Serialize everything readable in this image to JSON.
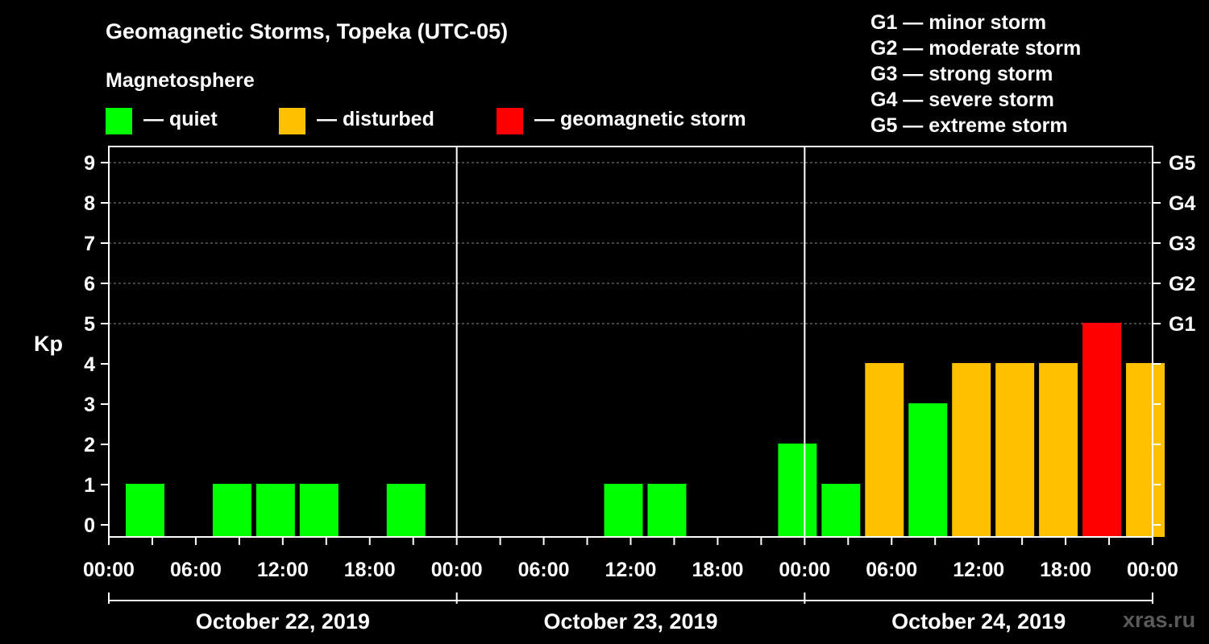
{
  "chart_data": {
    "type": "bar",
    "title": "Geomagnetic Storms, Topeka (UTC-05)",
    "subtitle": "Magnetosphere",
    "ylabel": "Kp",
    "ylim": [
      0,
      9
    ],
    "y_ticks": [
      "0",
      "1",
      "2",
      "3",
      "4",
      "5",
      "6",
      "7",
      "8",
      "9"
    ],
    "right_ticks": [
      {
        "kp": 5,
        "label": "G1"
      },
      {
        "kp": 6,
        "label": "G2"
      },
      {
        "kp": 7,
        "label": "G3"
      },
      {
        "kp": 8,
        "label": "G4"
      },
      {
        "kp": 9,
        "label": "G5"
      }
    ],
    "x_tick_labels": [
      "00:00",
      "06:00",
      "12:00",
      "18:00",
      "00:00",
      "06:00",
      "12:00",
      "18:00",
      "00:00",
      "06:00",
      "12:00",
      "18:00",
      "00:00"
    ],
    "days": [
      "October 22, 2019",
      "October 23, 2019",
      "October 24, 2019"
    ],
    "bin_hours": 3,
    "values": [
      1,
      0,
      1,
      1,
      1,
      0,
      1,
      0,
      0,
      0,
      0,
      1,
      1,
      0,
      0,
      2,
      1,
      4,
      3,
      4,
      4,
      4,
      5,
      4
    ],
    "categories": [
      "quiet",
      "quiet",
      "quiet",
      "quiet",
      "quiet",
      "quiet",
      "quiet",
      "quiet",
      "quiet",
      "quiet",
      "quiet",
      "quiet",
      "quiet",
      "quiet",
      "quiet",
      "quiet",
      "quiet",
      "disturbed",
      "quiet",
      "disturbed",
      "disturbed",
      "disturbed",
      "storm",
      "disturbed"
    ],
    "grid": true,
    "legend": [
      {
        "key": "quiet",
        "label": "— quiet",
        "color": "#00ff00"
      },
      {
        "key": "disturbed",
        "label": "— disturbed",
        "color": "#ffc000"
      },
      {
        "key": "storm",
        "label": "— geomagnetic storm",
        "color": "#ff0000"
      }
    ],
    "scale_legend": [
      "G1 — minor storm",
      "G2 — moderate storm",
      "G3 — strong storm",
      "G4 — severe storm",
      "G5 — extreme storm"
    ],
    "watermark": "xras.ru"
  }
}
